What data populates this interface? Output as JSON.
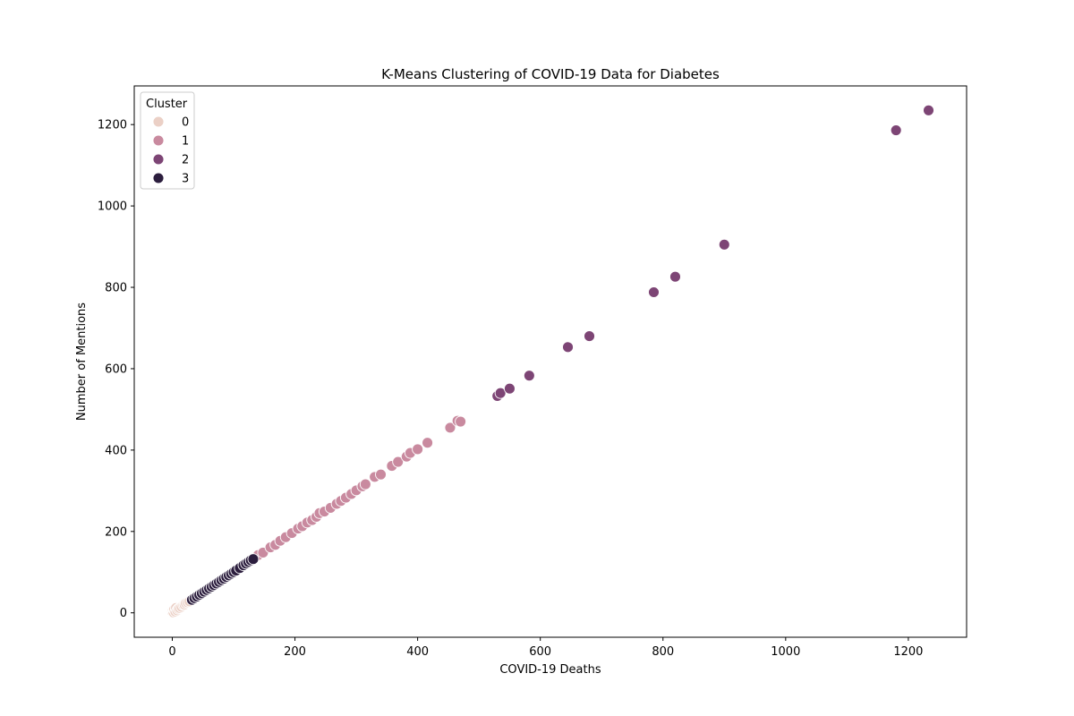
{
  "chart_data": {
    "type": "scatter",
    "title": "K-Means Clustering of COVID-19 Data for Diabetes",
    "xlabel": "COVID-19 Deaths",
    "ylabel": "Number of Mentions",
    "xlim": [
      -62,
      1295
    ],
    "ylim": [
      -60,
      1295
    ],
    "x_ticks": [
      0,
      200,
      400,
      600,
      800,
      1000,
      1200
    ],
    "y_ticks": [
      0,
      200,
      400,
      600,
      800,
      1000,
      1200
    ],
    "grid": false,
    "legend": {
      "title": "Cluster",
      "placement": "top-left"
    },
    "series": [
      {
        "name": "0",
        "color": "#ebd0c6",
        "points": [
          [
            0,
            0
          ],
          [
            0,
            2
          ],
          [
            1,
            5
          ],
          [
            2,
            1
          ],
          [
            3,
            8
          ],
          [
            5,
            3
          ],
          [
            6,
            12
          ],
          [
            8,
            6
          ],
          [
            10,
            10
          ],
          [
            12,
            12
          ],
          [
            15,
            15
          ],
          [
            18,
            19
          ],
          [
            20,
            20
          ],
          [
            22,
            24
          ],
          [
            25,
            26
          ],
          [
            28,
            28
          ]
        ]
      },
      {
        "name": "1",
        "color": "#c98a9f",
        "points": [
          [
            140,
            142
          ],
          [
            148,
            148
          ],
          [
            160,
            161
          ],
          [
            168,
            167
          ],
          [
            176,
            177
          ],
          [
            185,
            186
          ],
          [
            195,
            196
          ],
          [
            205,
            207
          ],
          [
            212,
            213
          ],
          [
            220,
            222
          ],
          [
            228,
            228
          ],
          [
            235,
            236
          ],
          [
            240,
            245
          ],
          [
            248,
            249
          ],
          [
            258,
            258
          ],
          [
            268,
            268
          ],
          [
            275,
            275
          ],
          [
            283,
            283
          ],
          [
            292,
            292
          ],
          [
            300,
            301
          ],
          [
            310,
            311
          ],
          [
            315,
            316
          ],
          [
            330,
            334
          ],
          [
            340,
            340
          ],
          [
            358,
            361
          ],
          [
            368,
            371
          ],
          [
            382,
            384
          ],
          [
            388,
            393
          ],
          [
            400,
            402
          ],
          [
            416,
            418
          ],
          [
            453,
            455
          ],
          [
            465,
            472
          ],
          [
            470,
            470
          ]
        ]
      },
      {
        "name": "2",
        "color": "#7d4575",
        "points": [
          [
            530,
            533
          ],
          [
            535,
            540
          ],
          [
            550,
            551
          ],
          [
            582,
            583
          ],
          [
            645,
            653
          ],
          [
            680,
            680
          ],
          [
            785,
            788
          ],
          [
            820,
            826
          ],
          [
            900,
            905
          ],
          [
            1180,
            1186
          ],
          [
            1233,
            1235
          ]
        ]
      },
      {
        "name": "3",
        "color": "#2c1e3e",
        "points": [
          [
            32,
            32
          ],
          [
            36,
            36
          ],
          [
            40,
            40
          ],
          [
            44,
            44
          ],
          [
            48,
            48
          ],
          [
            52,
            52
          ],
          [
            56,
            56
          ],
          [
            60,
            60
          ],
          [
            64,
            64
          ],
          [
            68,
            68
          ],
          [
            72,
            72
          ],
          [
            76,
            76
          ],
          [
            80,
            80
          ],
          [
            84,
            84
          ],
          [
            88,
            88
          ],
          [
            92,
            92
          ],
          [
            96,
            96
          ],
          [
            100,
            100
          ],
          [
            104,
            104
          ],
          [
            110,
            110
          ],
          [
            116,
            117
          ],
          [
            120,
            121
          ],
          [
            124,
            125
          ],
          [
            128,
            129
          ],
          [
            132,
            132
          ]
        ]
      }
    ]
  }
}
